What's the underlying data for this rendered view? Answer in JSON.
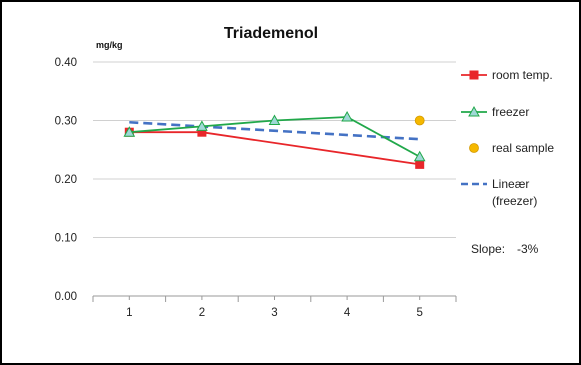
{
  "chart_data": {
    "type": "line",
    "title": "Triademenol",
    "unit_label": "mg/kg",
    "xlabel": "",
    "ylabel": "mg/kg",
    "x": [
      1,
      2,
      3,
      4,
      5
    ],
    "x_tick_labels": [
      "1",
      "2",
      "3",
      "4",
      "5"
    ],
    "ylim": [
      0.0,
      0.4
    ],
    "y_ticks": [
      0.0,
      0.1,
      0.2,
      0.3,
      0.4
    ],
    "y_tick_labels": [
      "0.00",
      "0.10",
      "0.20",
      "0.30",
      "0.40"
    ],
    "grid": "horizontal",
    "legend_position": "right",
    "series": [
      {
        "name": "room temp.",
        "color": "#e8262a",
        "marker": "square",
        "line": "solid",
        "points": [
          [
            1,
            0.28
          ],
          [
            2,
            0.28
          ],
          [
            5,
            0.225
          ]
        ]
      },
      {
        "name": "freezer",
        "color": "#21a84a",
        "marker": "triangle",
        "line": "solid",
        "points": [
          [
            1,
            0.28
          ],
          [
            2,
            0.29
          ],
          [
            3,
            0.3
          ],
          [
            4,
            0.306
          ],
          [
            5,
            0.238
          ]
        ]
      },
      {
        "name": "real sample",
        "color": "#f5b800",
        "marker": "circle",
        "line": "none",
        "points": [
          [
            5,
            0.3
          ]
        ]
      },
      {
        "name_lines": [
          "Lineær",
          "(freezer)"
        ],
        "color": "#4472c4",
        "marker": "none",
        "line": "dashed",
        "points": [
          [
            1,
            0.297
          ],
          [
            5,
            0.268
          ]
        ]
      }
    ],
    "annotation": {
      "label": "Slope:",
      "value": "-3%"
    }
  }
}
